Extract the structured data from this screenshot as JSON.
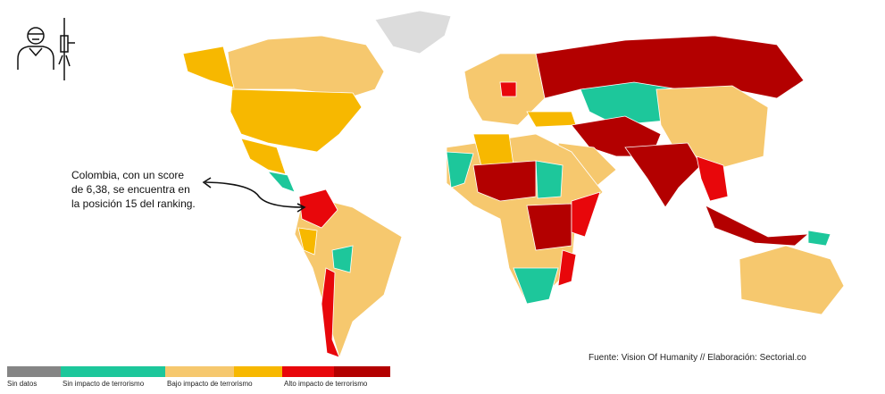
{
  "annotation": {
    "lines": [
      "Colombia, con un score",
      "de 6,38, se encuentra en",
      "la posición 15 del ranking."
    ]
  },
  "source": "Fuente: Vision Of Humanity // Elaboración: Sectorial.co",
  "legend": [
    {
      "label": "Sin datos",
      "colors": [
        "#858585"
      ]
    },
    {
      "label": "Sin impacto de terrorismo",
      "colors": [
        "#1dc79b"
      ]
    },
    {
      "label": "Bajo impacto de terrorismo",
      "colors": [
        "#f6c86e",
        "#f7b800"
      ]
    },
    {
      "label": "Alto impacto de terrorismo",
      "colors": [
        "#e8070b",
        "#b30000"
      ]
    }
  ]
}
